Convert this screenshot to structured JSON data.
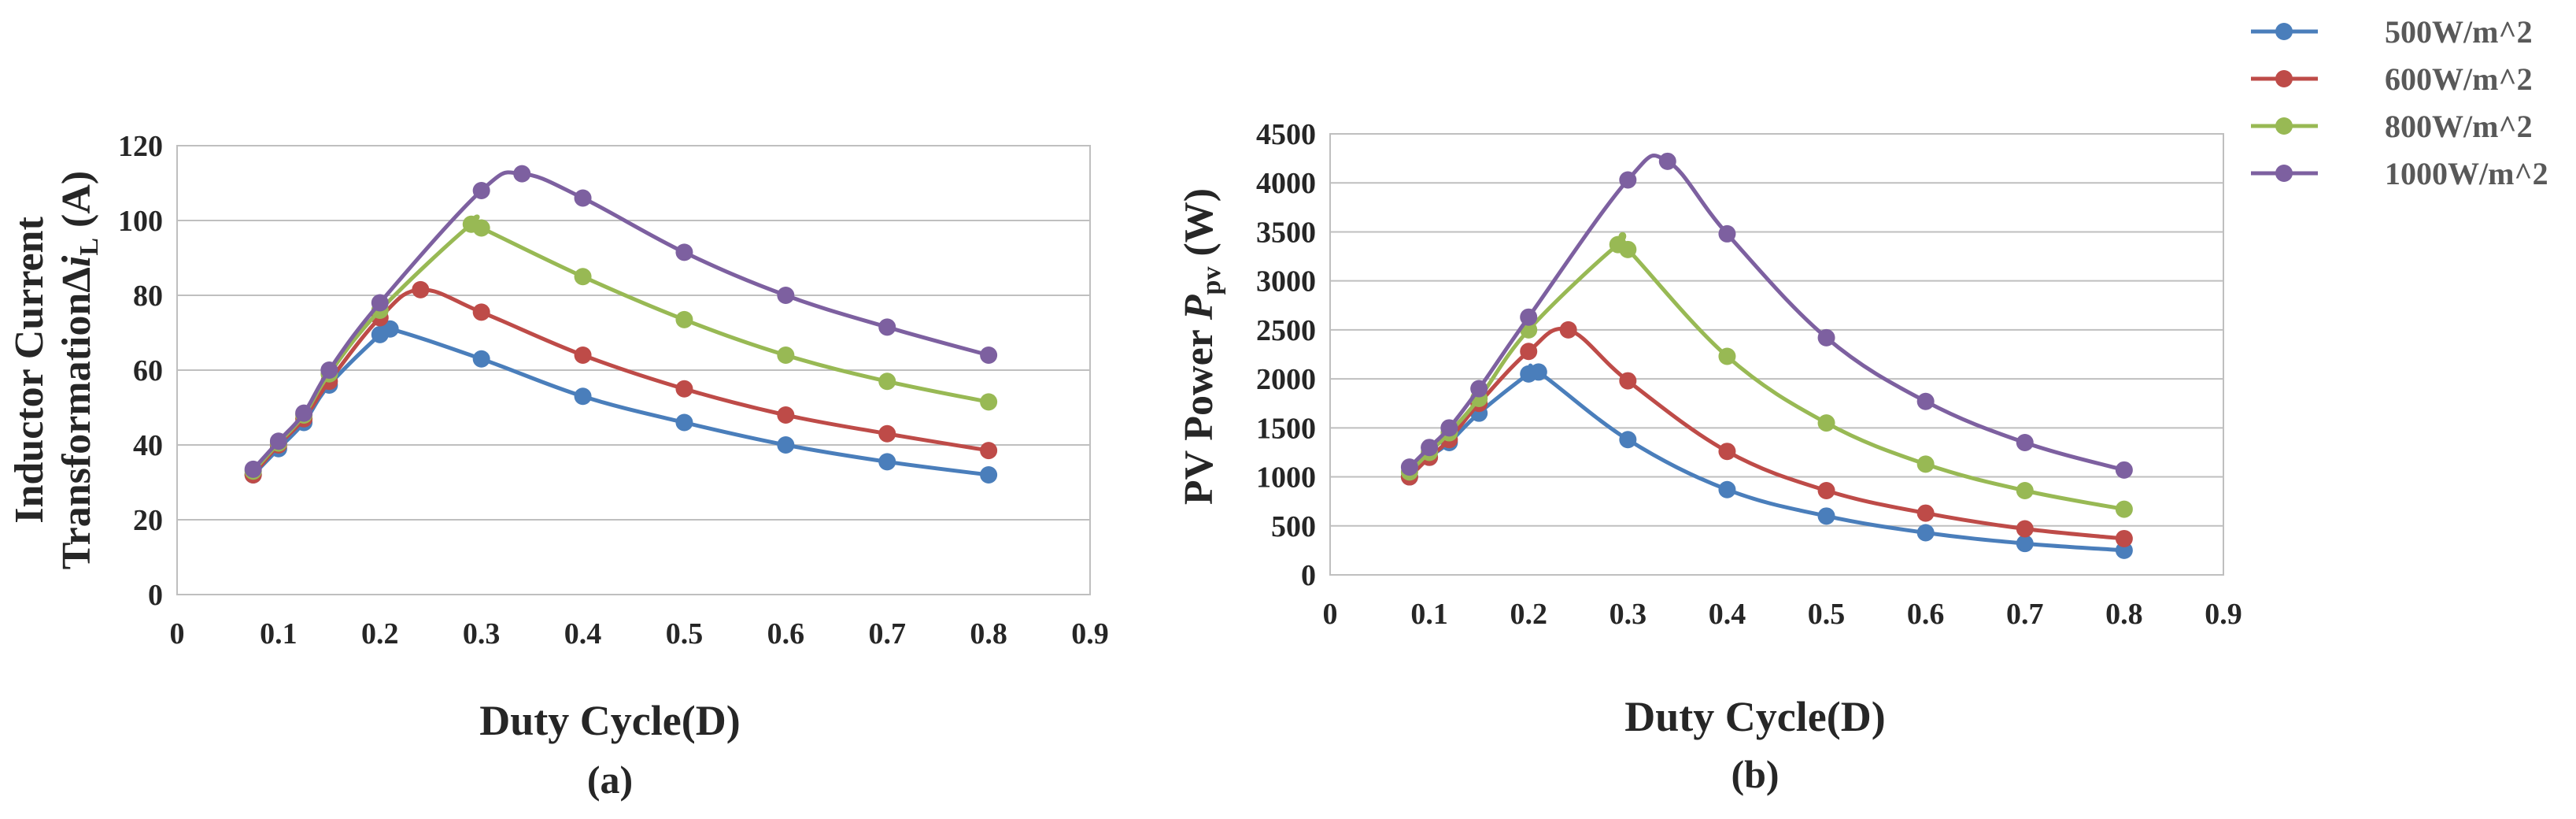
{
  "legend": {
    "entries": [
      "500W/m^2",
      "600W/m^2",
      "800W/m^2",
      "1000W/m^2"
    ],
    "colors": [
      "#4a7ebb",
      "#be4b48",
      "#98b954",
      "#7d60a0"
    ],
    "placement": "top-right"
  },
  "chart_data": [
    {
      "type": "line",
      "panel": "(a)",
      "title": "",
      "xlabel": "Duty Cycle(D)",
      "ylabel_line1": "Inductor Current",
      "ylabel_line2_prefix": "Transformation",
      "ylabel_symbol": "Δ",
      "ylabel_var": "i",
      "ylabel_sub": "L",
      "ylabel_unit": " (A)",
      "xlim": [
        0,
        0.9
      ],
      "ylim": [
        0,
        120
      ],
      "xticks": [
        0,
        0.1,
        0.2,
        0.3,
        0.4,
        0.5,
        0.6,
        0.7,
        0.8,
        0.9
      ],
      "yticks": [
        0,
        20,
        40,
        60,
        80,
        100,
        120
      ],
      "xtick_labels": [
        "0",
        "0.1",
        "0.2",
        "0.3",
        "0.4",
        "0.5",
        "0.6",
        "0.7",
        "0.8",
        "0.9"
      ],
      "ytick_labels": [
        "0",
        "20",
        "40",
        "60",
        "80",
        "100",
        "120"
      ],
      "grid": true,
      "series": [
        {
          "name": "500W/m^2",
          "x": [
            0.075,
            0.1,
            0.125,
            0.15,
            0.2,
            0.21,
            0.3,
            0.4,
            0.5,
            0.6,
            0.7,
            0.8
          ],
          "y": [
            32,
            39,
            46,
            56,
            69.5,
            71,
            63,
            53,
            46,
            40,
            35.5,
            32
          ]
        },
        {
          "name": "600W/m^2",
          "x": [
            0.075,
            0.1,
            0.125,
            0.15,
            0.2,
            0.24,
            0.3,
            0.4,
            0.5,
            0.6,
            0.7,
            0.8
          ],
          "y": [
            32,
            40,
            47,
            57,
            74,
            81.5,
            75.5,
            64,
            55,
            48,
            43,
            38.5
          ]
        },
        {
          "name": "800W/m^2",
          "x": [
            0.075,
            0.1,
            0.125,
            0.15,
            0.2,
            0.29,
            0.3,
            0.4,
            0.5,
            0.6,
            0.7,
            0.8
          ],
          "y": [
            33,
            40.5,
            48,
            59,
            76,
            99,
            98,
            85,
            73.5,
            64,
            57,
            51.5
          ]
        },
        {
          "name": "1000W/m^2",
          "x": [
            0.075,
            0.1,
            0.125,
            0.15,
            0.2,
            0.3,
            0.34,
            0.4,
            0.5,
            0.6,
            0.7,
            0.8
          ],
          "y": [
            33.5,
            41,
            48.5,
            60,
            78,
            108,
            112.5,
            106,
            91.5,
            80,
            71.5,
            64
          ]
        }
      ]
    },
    {
      "type": "line",
      "panel": "(b)",
      "title": "",
      "xlabel": "Duty Cycle(D)",
      "ylabel_prefix": "PV Power ",
      "ylabel_var": "P",
      "ylabel_sub": "pv",
      "ylabel_unit": " (W)",
      "xlim": [
        0,
        0.9
      ],
      "ylim": [
        0,
        4500
      ],
      "xticks": [
        0,
        0.1,
        0.2,
        0.3,
        0.4,
        0.5,
        0.6,
        0.7,
        0.8,
        0.9
      ],
      "yticks": [
        0,
        500,
        1000,
        1500,
        2000,
        2500,
        3000,
        3500,
        4000,
        4500
      ],
      "xtick_labels": [
        "0",
        "0.1",
        "0.2",
        "0.3",
        "0.4",
        "0.5",
        "0.6",
        "0.7",
        "0.8",
        "0.9"
      ],
      "ytick_labels": [
        "0",
        "500",
        "1000",
        "1500",
        "2000",
        "2500",
        "3000",
        "3500",
        "4000",
        "4500"
      ],
      "grid": true,
      "series": [
        {
          "name": "500W/m^2",
          "x": [
            0.08,
            0.1,
            0.12,
            0.15,
            0.2,
            0.21,
            0.3,
            0.4,
            0.5,
            0.6,
            0.7,
            0.8
          ],
          "y": [
            1000,
            1200,
            1350,
            1650,
            2050,
            2070,
            1380,
            870,
            600,
            430,
            320,
            250
          ]
        },
        {
          "name": "600W/m^2",
          "x": [
            0.08,
            0.1,
            0.12,
            0.15,
            0.2,
            0.24,
            0.3,
            0.4,
            0.5,
            0.6,
            0.7,
            0.8
          ],
          "y": [
            1000,
            1200,
            1380,
            1750,
            2280,
            2500,
            1980,
            1260,
            860,
            630,
            470,
            370
          ]
        },
        {
          "name": "800W/m^2",
          "x": [
            0.08,
            0.1,
            0.12,
            0.15,
            0.2,
            0.29,
            0.3,
            0.4,
            0.5,
            0.6,
            0.7,
            0.8
          ],
          "y": [
            1050,
            1250,
            1450,
            1800,
            2500,
            3370,
            3320,
            2230,
            1550,
            1130,
            860,
            670
          ]
        },
        {
          "name": "1000W/m^2",
          "x": [
            0.08,
            0.1,
            0.12,
            0.15,
            0.2,
            0.3,
            0.34,
            0.4,
            0.5,
            0.6,
            0.7,
            0.8
          ],
          "y": [
            1100,
            1300,
            1500,
            1900,
            2630,
            4030,
            4220,
            3480,
            2420,
            1770,
            1350,
            1070
          ]
        }
      ]
    }
  ]
}
